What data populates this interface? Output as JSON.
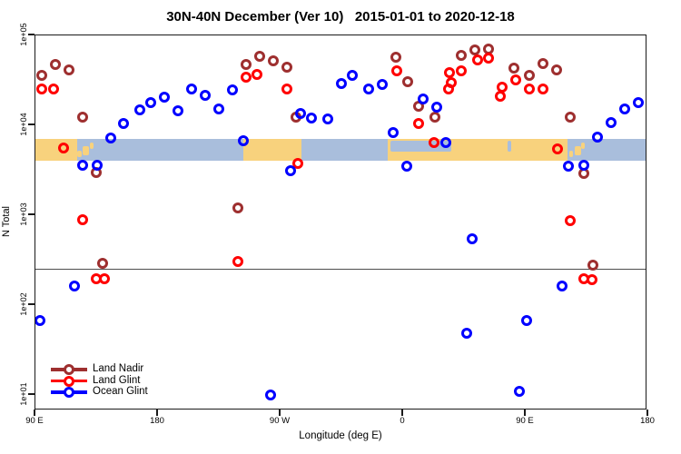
{
  "chart_data": {
    "type": "scatter",
    "title": "30N-40N December (Ver 10)   2015-01-01 to 2020-12-18",
    "xlabel": "Longitude (deg E)",
    "ylabel": "N Total",
    "x_axis": {
      "note": "longitude axis wraps 450 degrees starting at 90E",
      "range_deg": [
        90,
        540
      ],
      "ticks": [
        {
          "deg": 90,
          "label": "90 E"
        },
        {
          "deg": 180,
          "label": "180"
        },
        {
          "deg": 270,
          "label": "90 W"
        },
        {
          "deg": 360,
          "label": "0"
        },
        {
          "deg": 450,
          "label": "90 E"
        },
        {
          "deg": 540,
          "label": "180"
        }
      ]
    },
    "y_axis": {
      "scale": "log10",
      "grid": false,
      "ticks": [
        {
          "value": 100000,
          "label": "1e+05"
        },
        {
          "value": 10000,
          "label": "1e+04"
        },
        {
          "value": 1000,
          "label": "1e+03"
        },
        {
          "value": 100,
          "label": "1e+02"
        },
        {
          "value": 10,
          "label": "1e+01"
        }
      ]
    },
    "ref_line": {
      "value": 250,
      "color": "#4d4d4d"
    },
    "map_strip": {
      "meaning": "land/ocean map of the 30N-40N latitude band",
      "ocean_color": "#A9BEDC",
      "land_color": "#F8D27D",
      "land_segments_deg": [
        [
          90,
          121
        ],
        [
          243,
          286
        ],
        [
          349,
          481.5
        ]
      ],
      "island_segments_deg": [
        [
          121.5,
          124.5
        ],
        [
          125.5,
          130
        ],
        [
          130.5,
          133
        ],
        [
          482.5,
          485.5
        ],
        [
          486.5,
          491
        ],
        [
          491.5,
          494
        ]
      ],
      "sea_patches_deg": [
        [
          351,
          396
        ],
        [
          437,
          440
        ]
      ]
    },
    "legend_position": "bottom-left",
    "series": [
      {
        "name": "Land Nadir",
        "color": "#9E2F2F",
        "points": [
          [
            95,
            35000
          ],
          [
            105,
            46000
          ],
          [
            115,
            40000
          ],
          [
            125,
            12000
          ],
          [
            135,
            2900
          ],
          [
            140,
            285
          ],
          [
            239,
            1180
          ],
          [
            245,
            46000
          ],
          [
            255,
            57000
          ],
          [
            265,
            51000
          ],
          [
            275,
            43000
          ],
          [
            282,
            12000
          ],
          [
            355,
            56000
          ],
          [
            364,
            30000
          ],
          [
            372,
            16000
          ],
          [
            384,
            12000
          ],
          [
            403,
            59000
          ],
          [
            413,
            67000
          ],
          [
            423,
            69000
          ],
          [
            442,
            42000
          ],
          [
            453,
            35000
          ],
          [
            463,
            47000
          ],
          [
            473,
            40000
          ],
          [
            483,
            12000
          ],
          [
            493,
            2850
          ],
          [
            500,
            272
          ]
        ]
      },
      {
        "name": "Land Glint",
        "color": "#FF0000",
        "points": [
          [
            95,
            25000
          ],
          [
            104,
            25000
          ],
          [
            111,
            5500
          ],
          [
            125,
            870
          ],
          [
            135,
            192
          ],
          [
            141,
            192
          ],
          [
            239,
            300
          ],
          [
            245,
            33500
          ],
          [
            253,
            36000
          ],
          [
            275,
            25000
          ],
          [
            283,
            3700
          ],
          [
            356,
            39000
          ],
          [
            372,
            10200
          ],
          [
            383,
            6300
          ],
          [
            394,
            24500
          ],
          [
            394.5,
            38000
          ],
          [
            396,
            29000
          ],
          [
            403,
            39000
          ],
          [
            415,
            52000
          ],
          [
            423,
            54500
          ],
          [
            432,
            20500
          ],
          [
            433,
            26000
          ],
          [
            443,
            31000
          ],
          [
            453,
            25000
          ],
          [
            463,
            25000
          ],
          [
            474,
            5300
          ],
          [
            483,
            850
          ],
          [
            493,
            192
          ],
          [
            499,
            187
          ]
        ]
      },
      {
        "name": "Ocean Glint",
        "color": "#0000FF",
        "points": [
          [
            94,
            66
          ],
          [
            119,
            159
          ],
          [
            125,
            3500
          ],
          [
            136,
            3500
          ],
          [
            146,
            7000
          ],
          [
            155,
            10200
          ],
          [
            167,
            14500
          ],
          [
            175,
            17500
          ],
          [
            185,
            20000
          ],
          [
            195,
            14200
          ],
          [
            205,
            25000
          ],
          [
            215,
            21000
          ],
          [
            225,
            14900
          ],
          [
            235,
            24000
          ],
          [
            243,
            6600
          ],
          [
            263,
            9.8
          ],
          [
            278,
            3050
          ],
          [
            285,
            13200
          ],
          [
            293,
            11800
          ],
          [
            305,
            11500
          ],
          [
            315,
            28500
          ],
          [
            323,
            35000
          ],
          [
            335,
            25000
          ],
          [
            345,
            28000
          ],
          [
            353,
            8100
          ],
          [
            363,
            3400
          ],
          [
            375,
            19000
          ],
          [
            385,
            15600
          ],
          [
            392,
            6300
          ],
          [
            407,
            47.5
          ],
          [
            411,
            533
          ],
          [
            446,
            10.7
          ],
          [
            451,
            66
          ],
          [
            477,
            159
          ],
          [
            482,
            3400
          ],
          [
            493,
            3500
          ],
          [
            503,
            7200
          ],
          [
            513,
            10500
          ],
          [
            523,
            14900
          ],
          [
            533,
            17500
          ]
        ]
      }
    ]
  }
}
